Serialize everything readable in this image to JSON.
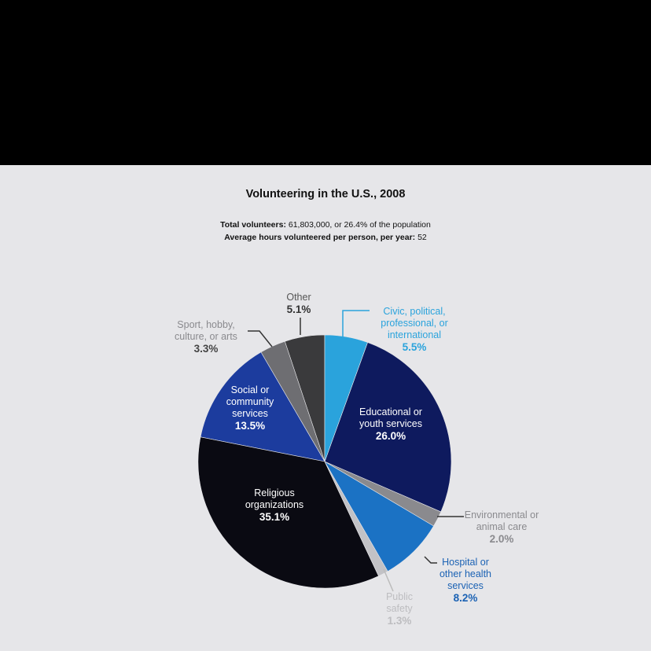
{
  "chart_data": {
    "type": "pie",
    "title": "Volunteering in the U.S., 2008",
    "total_label": "Total volunteers:",
    "total_value": "61,803,000, or 26.4% of the population",
    "hours_label": "Average hours volunteered per person, per year:",
    "hours_value": 52,
    "categories": [
      "Civic, political, professional, or international",
      "Educational or youth services",
      "Environmental or animal care",
      "Hospital or other health services",
      "Public safety",
      "Religious organizations",
      "Social or community services",
      "Sport, hobby, culture, or arts",
      "Other"
    ],
    "values": [
      5.5,
      26.0,
      2.0,
      8.2,
      1.3,
      35.1,
      13.5,
      3.3,
      5.1
    ],
    "value_labels": [
      "5.5%",
      "26.0%",
      "2.0%",
      "8.2%",
      "1.3%",
      "35.1%",
      "13.5%",
      "3.3%",
      "5.1%"
    ],
    "colors": [
      "#2aa3dc",
      "#0e1a5e",
      "#8a8a8e",
      "#1b72c4",
      "#c2c2c6",
      "#0a0a12",
      "#1c3c9e",
      "#6e6e72",
      "#3a3a3c"
    ]
  }
}
